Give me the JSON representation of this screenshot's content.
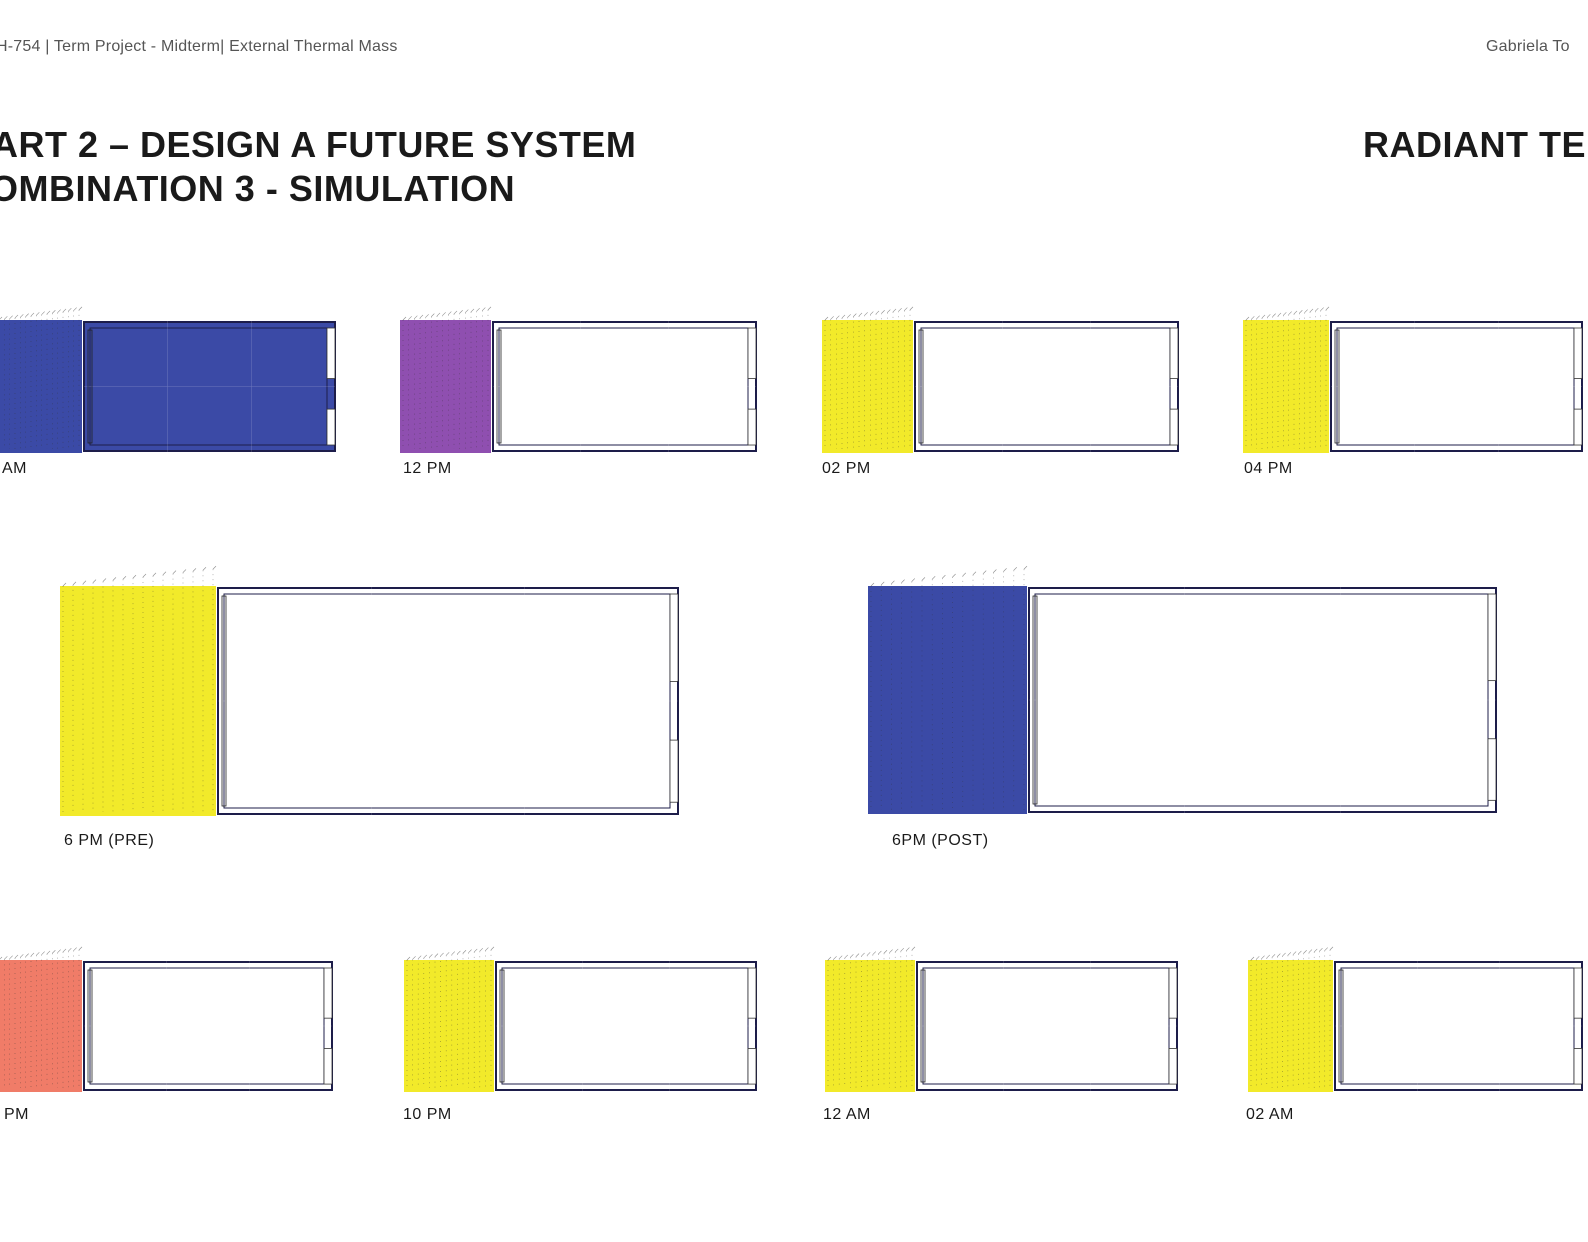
{
  "header": {
    "left": "H-754 | Term Project - Midterm| External Thermal Mass",
    "right": "Gabriela To"
  },
  "titles": {
    "line1": "ART 2 – DESIGN A FUTURE SYSTEM",
    "line2": "OMBINATION 3 -  SIMULATION",
    "right": "RADIANT TEM"
  },
  "colors": {
    "cold": "#3b4aa6",
    "mid": "#d4509a",
    "warm": "#f07c68",
    "hot": "#f2ea2a"
  },
  "frames": [
    {
      "label": "AM",
      "heat": 0.0,
      "outdoor": "cold"
    },
    {
      "label": "12 PM",
      "heat": 0.25,
      "outdoor": "purple"
    },
    {
      "label": "02 PM",
      "heat": 0.7,
      "outdoor": "hot"
    },
    {
      "label": "04 PM",
      "heat": 0.85,
      "outdoor": "hot"
    },
    {
      "label": "6 PM (PRE)",
      "heat": 1.0,
      "outdoor": "hot"
    },
    {
      "label": "6PM (POST)",
      "heat": 0.3,
      "outdoor": "cold"
    },
    {
      "label": "PM",
      "heat": 0.45,
      "outdoor": "warm"
    },
    {
      "label": "10 PM",
      "heat": 0.7,
      "outdoor": "hot"
    },
    {
      "label": "12 AM",
      "heat": 0.85,
      "outdoor": "hot"
    },
    {
      "label": "02 AM",
      "heat": 0.8,
      "outdoor": "hot"
    }
  ]
}
